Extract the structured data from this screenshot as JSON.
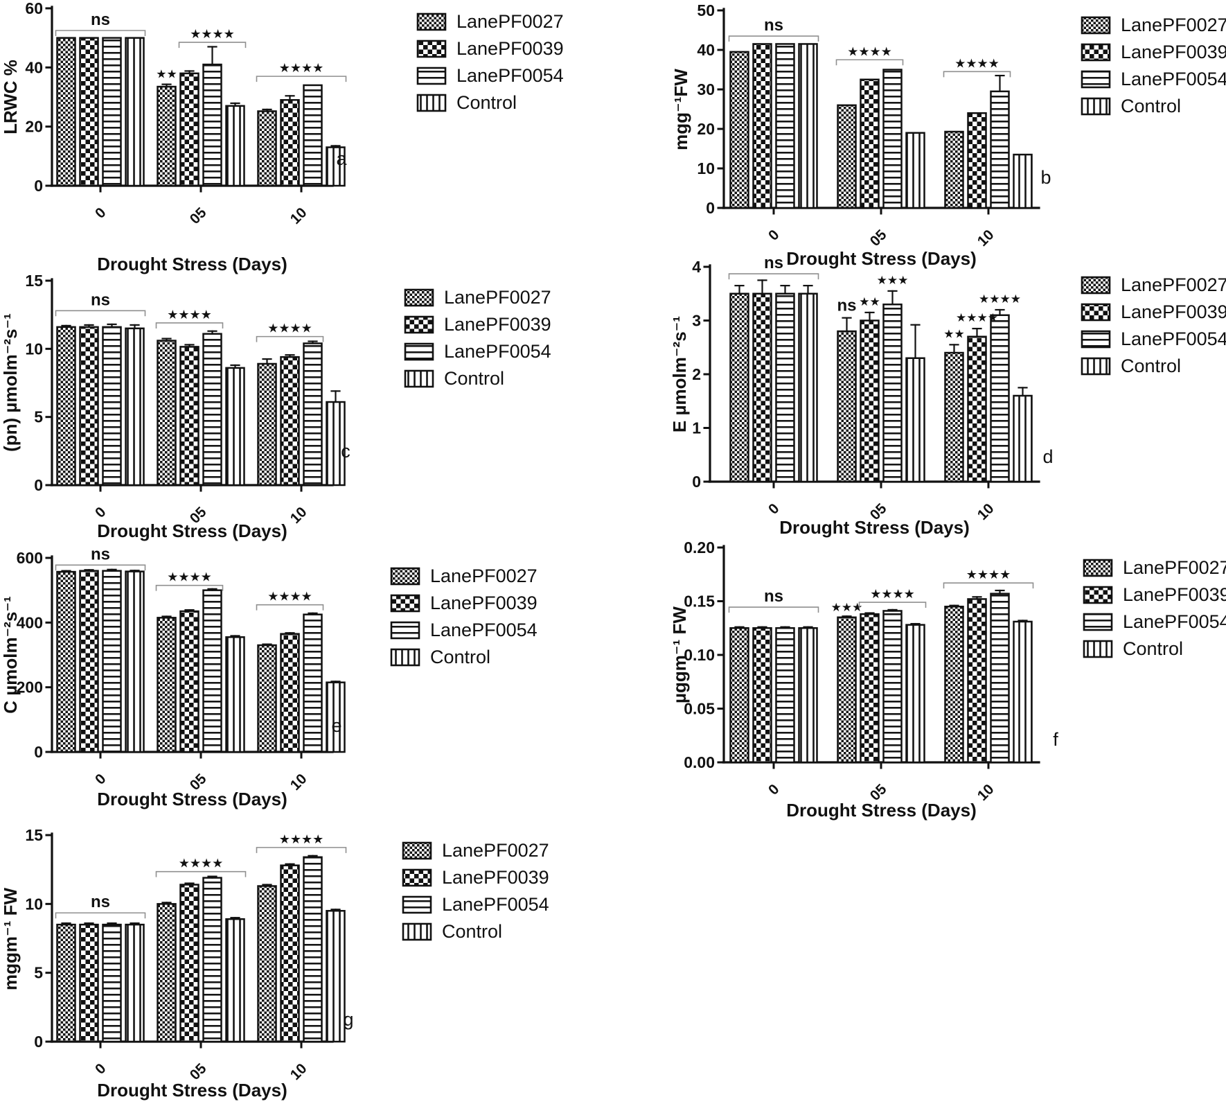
{
  "figure": {
    "background": "#ffffff",
    "ink_color": "#111111",
    "bracket_color": "#8f8f8f",
    "xlabel": "Drought Stress (Days)",
    "categories": [
      "0",
      "05",
      "10"
    ],
    "legend_entries": [
      {
        "label": "LanePF0027",
        "pattern": "fine-checker"
      },
      {
        "label": "LanePF0039",
        "pattern": "coarse-checker"
      },
      {
        "label": "LanePF0054",
        "pattern": "horizontal-lines"
      },
      {
        "label": "Control",
        "pattern": "vertical-lines"
      }
    ]
  },
  "chart_data": [
    {
      "type": "bar",
      "panel": "a",
      "ylabel": "LRWC %",
      "xlabel": "Drought Stress (Days)",
      "ylim": [
        0,
        60
      ],
      "yticks": [
        "0",
        "20",
        "40",
        "60"
      ],
      "categories": [
        "0",
        "05",
        "10"
      ],
      "series": [
        {
          "name": "LanePF0027",
          "values": [
            50,
            33.5,
            25.2
          ],
          "err": [
            0,
            0.8,
            0.6
          ]
        },
        {
          "name": "LanePF0039",
          "values": [
            50,
            38,
            29
          ],
          "err": [
            0,
            0.8,
            1.4
          ]
        },
        {
          "name": "LanePF0054",
          "values": [
            50,
            41,
            34
          ],
          "err": [
            0,
            6,
            0
          ]
        },
        {
          "name": "Control",
          "values": [
            50,
            27,
            13
          ],
          "err": [
            0,
            0.9,
            0.5
          ]
        }
      ],
      "annotations": [
        {
          "kind": "bracket",
          "group": 0,
          "from": 0,
          "to": 3,
          "y": 52.5,
          "label": "ns"
        },
        {
          "kind": "star",
          "group": 1,
          "bar": 0,
          "y": 36.5,
          "label": "**"
        },
        {
          "kind": "bracket",
          "group": 1,
          "from": 1,
          "to": 3,
          "y": 48.5,
          "label": "****"
        },
        {
          "kind": "bracket",
          "group": 2,
          "from": 0,
          "to": 3,
          "y": 37,
          "label": "****"
        }
      ]
    },
    {
      "type": "bar",
      "panel": "b",
      "ylabel": "mgg⁻¹FW",
      "xlabel": "Drought Stress (Days)",
      "ylim": [
        0,
        50
      ],
      "yticks": [
        "0",
        "10",
        "20",
        "30",
        "40",
        "50"
      ],
      "categories": [
        "0",
        "05",
        "10"
      ],
      "series": [
        {
          "name": "LanePF0027",
          "values": [
            39.5,
            26,
            19.3
          ],
          "err": [
            0,
            0,
            0
          ]
        },
        {
          "name": "LanePF0039",
          "values": [
            41.5,
            32.5,
            24
          ],
          "err": [
            0,
            0,
            0
          ]
        },
        {
          "name": "LanePF0054",
          "values": [
            41.5,
            35,
            29.5
          ],
          "err": [
            0,
            0,
            4
          ]
        },
        {
          "name": "Control",
          "values": [
            41.5,
            19,
            13.5
          ],
          "err": [
            0,
            0,
            0
          ]
        }
      ],
      "annotations": [
        {
          "kind": "bracket",
          "group": 0,
          "from": 0,
          "to": 3,
          "y": 43.5,
          "label": "ns"
        },
        {
          "kind": "bracket",
          "group": 1,
          "from": 0,
          "to": 2,
          "y": 37.5,
          "label": "****"
        },
        {
          "kind": "bracket",
          "group": 2,
          "from": 0,
          "to": 2,
          "y": 34.5,
          "label": "****"
        }
      ]
    },
    {
      "type": "bar",
      "panel": "c",
      "ylabel": "(pn) µmolm⁻²s⁻¹",
      "xlabel": "Drought Stress (Days)",
      "ylim": [
        0,
        15
      ],
      "yticks": [
        "0",
        "5",
        "10",
        "15"
      ],
      "categories": [
        "0",
        "05",
        "10"
      ],
      "series": [
        {
          "name": "LanePF0027",
          "values": [
            11.6,
            10.6,
            8.9
          ],
          "err": [
            0.1,
            0.15,
            0.35
          ]
        },
        {
          "name": "LanePF0039",
          "values": [
            11.6,
            10.15,
            9.4
          ],
          "err": [
            0.15,
            0.15,
            0.15
          ]
        },
        {
          "name": "LanePF0054",
          "values": [
            11.6,
            11.1,
            10.4
          ],
          "err": [
            0.2,
            0.2,
            0.15
          ]
        },
        {
          "name": "Control",
          "values": [
            11.5,
            8.6,
            6.1
          ],
          "err": [
            0.25,
            0.2,
            0.8
          ]
        }
      ],
      "annotations": [
        {
          "kind": "bracket",
          "group": 0,
          "from": 0,
          "to": 3,
          "y": 12.8,
          "label": "ns"
        },
        {
          "kind": "bracket",
          "group": 1,
          "from": 0,
          "to": 2,
          "y": 11.9,
          "label": "****"
        },
        {
          "kind": "bracket",
          "group": 2,
          "from": 0,
          "to": 2,
          "y": 10.9,
          "label": "****"
        }
      ]
    },
    {
      "type": "bar",
      "panel": "d",
      "ylabel": "E µmolm⁻²s⁻¹",
      "xlabel": "Drought Stress (Days)",
      "ylim": [
        0,
        4
      ],
      "yticks": [
        "0",
        "1",
        "2",
        "3",
        "4"
      ],
      "categories": [
        "0",
        "05",
        "10"
      ],
      "series": [
        {
          "name": "LanePF0027",
          "values": [
            3.5,
            2.8,
            2.4
          ],
          "err": [
            0.15,
            0.25,
            0.15
          ]
        },
        {
          "name": "LanePF0039",
          "values": [
            3.5,
            3.0,
            2.7
          ],
          "err": [
            0.25,
            0.15,
            0.15
          ]
        },
        {
          "name": "LanePF0054",
          "values": [
            3.5,
            3.3,
            3.1
          ],
          "err": [
            0.15,
            0.25,
            0.1
          ]
        },
        {
          "name": "Control",
          "values": [
            3.5,
            2.3,
            1.6
          ],
          "err": [
            0.15,
            0.62,
            0.15
          ]
        }
      ],
      "annotations": [
        {
          "kind": "bracket",
          "group": 0,
          "from": 0,
          "to": 3,
          "y": 3.87,
          "label": "ns"
        },
        {
          "kind": "star",
          "group": 1,
          "bar": 0,
          "y": 3.18,
          "label": "ns"
        },
        {
          "kind": "star",
          "group": 1,
          "bar": 1,
          "y": 3.28,
          "label": "**"
        },
        {
          "kind": "star",
          "group": 1,
          "bar": 2,
          "y": 3.68,
          "label": "***"
        },
        {
          "kind": "star",
          "group": 2,
          "bar": 0,
          "y": 2.68,
          "label": "**"
        },
        {
          "kind": "star",
          "group": 2,
          "bar": 1,
          "y": 2.98,
          "label": "****"
        },
        {
          "kind": "star",
          "group": 2,
          "bar": 2,
          "y": 3.33,
          "label": "****"
        }
      ]
    },
    {
      "type": "bar",
      "panel": "e",
      "ylabel": "C µmolm⁻²s⁻¹",
      "xlabel": "Drought Stress (Days)",
      "ylim": [
        0,
        600
      ],
      "yticks": [
        "0",
        "200",
        "400",
        "600"
      ],
      "categories": [
        "0",
        "05",
        "10"
      ],
      "series": [
        {
          "name": "LanePF0027",
          "values": [
            557,
            415,
            330
          ],
          "err": [
            3,
            4,
            3
          ]
        },
        {
          "name": "LanePF0039",
          "values": [
            560,
            435,
            365
          ],
          "err": [
            3,
            4,
            3
          ]
        },
        {
          "name": "LanePF0054",
          "values": [
            560,
            500,
            425
          ],
          "err": [
            4,
            4,
            4
          ]
        },
        {
          "name": "Control",
          "values": [
            558,
            355,
            215
          ],
          "err": [
            3,
            4,
            3
          ]
        }
      ],
      "annotations": [
        {
          "kind": "bracket",
          "group": 0,
          "from": 0,
          "to": 3,
          "y": 578,
          "label": "ns"
        },
        {
          "kind": "bracket",
          "group": 1,
          "from": 0,
          "to": 2,
          "y": 515,
          "label": "****"
        },
        {
          "kind": "bracket",
          "group": 2,
          "from": 0,
          "to": 2,
          "y": 455,
          "label": "****"
        }
      ]
    },
    {
      "type": "bar",
      "panel": "f",
      "ylabel": "µggm⁻¹ FW",
      "xlabel": "Drought Stress (Days)",
      "ylim": [
        0,
        0.2
      ],
      "yticks": [
        "0.00",
        "0.05",
        "0.10",
        "0.15",
        "0.20"
      ],
      "categories": [
        "0",
        "05",
        "10"
      ],
      "series": [
        {
          "name": "LanePF0027",
          "values": [
            0.125,
            0.135,
            0.145
          ],
          "err": [
            0.001,
            0.001,
            0.001
          ]
        },
        {
          "name": "LanePF0039",
          "values": [
            0.125,
            0.138,
            0.152
          ],
          "err": [
            0.001,
            0.001,
            0.002
          ]
        },
        {
          "name": "LanePF0054",
          "values": [
            0.125,
            0.141,
            0.157
          ],
          "err": [
            0.001,
            0.001,
            0.003
          ]
        },
        {
          "name": "Control",
          "values": [
            0.125,
            0.128,
            0.131
          ],
          "err": [
            0.001,
            0.001,
            0.001
          ]
        }
      ],
      "annotations": [
        {
          "kind": "bracket",
          "group": 0,
          "from": 0,
          "to": 3,
          "y": 0.1445,
          "label": "ns"
        },
        {
          "kind": "star",
          "group": 1,
          "bar": 0,
          "y": 0.1405,
          "label": "***"
        },
        {
          "kind": "bracket",
          "group": 1,
          "from": 1,
          "to": 3,
          "y": 0.149,
          "label": "****"
        },
        {
          "kind": "bracket",
          "group": 2,
          "from": 0,
          "to": 3,
          "y": 0.167,
          "label": "****"
        }
      ]
    },
    {
      "type": "bar",
      "panel": "g",
      "ylabel": "mggm⁻¹ FW",
      "xlabel": "Drought Stress (Days)",
      "ylim": [
        0,
        15
      ],
      "yticks": [
        "0",
        "5",
        "10",
        "15"
      ],
      "categories": [
        "0",
        "05",
        "10"
      ],
      "series": [
        {
          "name": "LanePF0027",
          "values": [
            8.5,
            10.0,
            11.3
          ],
          "err": [
            0.1,
            0.1,
            0.1
          ]
        },
        {
          "name": "LanePF0039",
          "values": [
            8.5,
            11.4,
            12.8
          ],
          "err": [
            0.1,
            0.1,
            0.1
          ]
        },
        {
          "name": "LanePF0054",
          "values": [
            8.5,
            11.9,
            13.4
          ],
          "err": [
            0.1,
            0.1,
            0.1
          ]
        },
        {
          "name": "Control",
          "values": [
            8.5,
            8.9,
            9.5
          ],
          "err": [
            0.1,
            0.1,
            0.1
          ]
        }
      ],
      "annotations": [
        {
          "kind": "bracket",
          "group": 0,
          "from": 0,
          "to": 3,
          "y": 9.35,
          "label": "ns"
        },
        {
          "kind": "bracket",
          "group": 1,
          "from": 0,
          "to": 3,
          "y": 12.35,
          "label": "****"
        },
        {
          "kind": "bracket",
          "group": 2,
          "from": 0,
          "to": 3,
          "y": 14.1,
          "label": "****"
        }
      ]
    }
  ]
}
